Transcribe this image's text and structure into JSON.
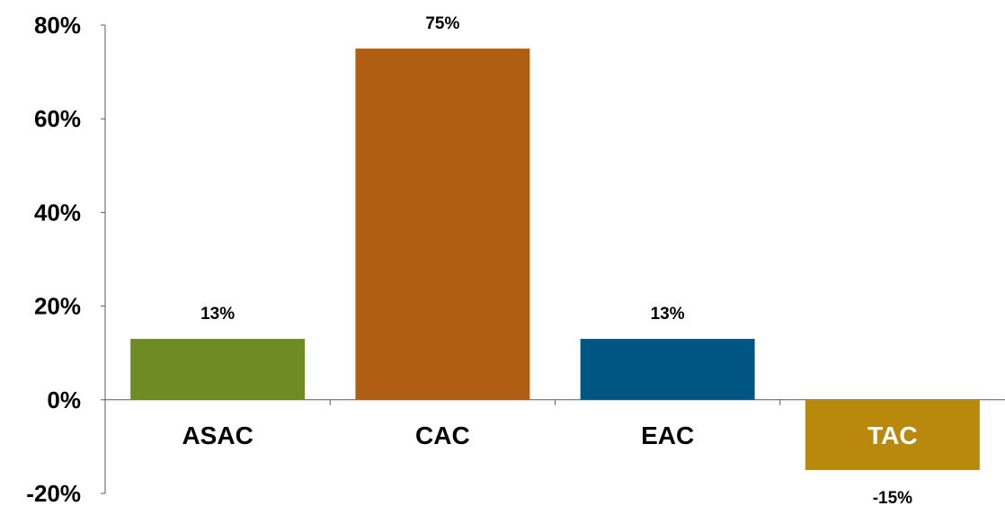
{
  "chart_data": {
    "type": "bar",
    "title": "",
    "xlabel": "",
    "ylabel": "",
    "categories": [
      "ASAC",
      "CAC",
      "EAC",
      "TAC"
    ],
    "values": [
      13,
      75,
      13,
      -15
    ],
    "data_labels": [
      "13%",
      "75%",
      "13%",
      "-15%"
    ],
    "colors": [
      "#6e8c24",
      "#b05f12",
      "#005683",
      "#b8890c"
    ],
    "ylim": [
      -20,
      80
    ],
    "y_ticks": [
      -20,
      0,
      20,
      40,
      60,
      80
    ],
    "y_tick_labels": [
      "-20%",
      "0%",
      "20%",
      "40%",
      "60%",
      "80%"
    ],
    "grid": false,
    "legend": "none",
    "negative_category_label_color": "#ffffff"
  }
}
